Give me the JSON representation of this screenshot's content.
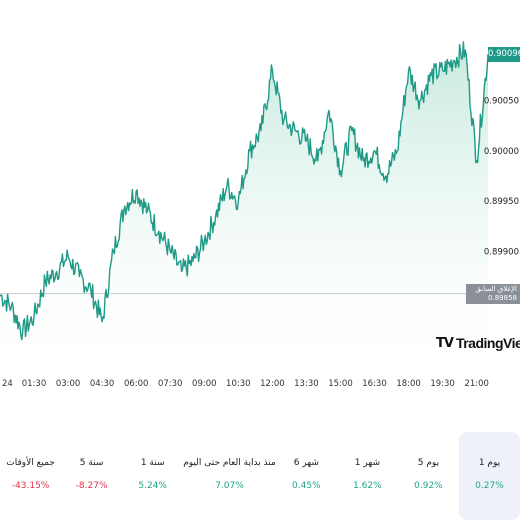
{
  "chart_data": {
    "type": "area",
    "x_ticks": [
      "24",
      "01:30",
      "03:00",
      "04:30",
      "06:00",
      "07:30",
      "09:00",
      "10:30",
      "12:00",
      "13:30",
      "15:00",
      "16:30",
      "18:00",
      "19:30",
      "21:00"
    ],
    "y_ticks": [
      "0.90050",
      "0.90000",
      "0.89950",
      "0.89900"
    ],
    "ylim": [
      0.8979,
      0.9013
    ],
    "series": [
      {
        "x": [
          "00:00",
          "00:30",
          "01:00",
          "01:30",
          "02:00",
          "02:30",
          "03:00",
          "03:30",
          "04:00",
          "04:30",
          "05:00",
          "05:30",
          "06:00",
          "06:30",
          "07:00",
          "07:30",
          "08:00",
          "08:30",
          "09:00",
          "09:30",
          "10:00",
          "10:30",
          "11:00",
          "11:30",
          "12:00",
          "12:30",
          "13:00",
          "13:30",
          "14:00",
          "14:30",
          "15:00",
          "15:30",
          "16:00",
          "16:30",
          "17:00",
          "17:30",
          "18:00",
          "18:30",
          "19:00",
          "19:30",
          "20:00",
          "20:30",
          "21:00",
          "21:30"
        ],
        "values": [
          0.89857,
          0.89845,
          0.8982,
          0.89835,
          0.8987,
          0.8988,
          0.89895,
          0.89875,
          0.89862,
          0.8983,
          0.899,
          0.89945,
          0.8996,
          0.8994,
          0.8992,
          0.899,
          0.8988,
          0.8989,
          0.8991,
          0.89935,
          0.89965,
          0.8995,
          0.9,
          0.9002,
          0.9008,
          0.9003,
          0.9002,
          0.9001,
          0.8999,
          0.9004,
          0.8998,
          0.9002,
          0.8999,
          0.9,
          0.89975,
          0.9,
          0.9008,
          0.9005,
          0.90075,
          0.9008,
          0.9009,
          0.901,
          0.8999,
          0.90096
        ]
      }
    ],
    "last_price": "0.90096",
    "prev_close_label": "الإغلاق السابق",
    "prev_close_value": "0.89858",
    "prev_close": 0.89858,
    "grid": false,
    "colors": {
      "line": "#1f9a87",
      "fill": "#d6efe7",
      "baseline": "#c9ccd3"
    }
  },
  "brand": {
    "name": "TradingView",
    "icon": "TV"
  },
  "periods": [
    {
      "label": "1 يوم",
      "value": "0.27%",
      "sign": "pos",
      "active": true
    },
    {
      "label": "5 يوم",
      "value": "0.92%",
      "sign": "pos",
      "active": false
    },
    {
      "label": "1 شهر",
      "value": "1.62%",
      "sign": "pos",
      "active": false
    },
    {
      "label": "6 شهر",
      "value": "0.45%",
      "sign": "pos",
      "active": false
    },
    {
      "label": "منذ بداية العام حتى اليوم",
      "value": "7.07%",
      "sign": "pos",
      "active": false
    },
    {
      "label": "1 سنة",
      "value": "5.24%",
      "sign": "pos",
      "active": false
    },
    {
      "label": "5 سنة",
      "value": "-8.27%",
      "sign": "neg",
      "active": false
    },
    {
      "label": "جميع الأوقات",
      "value": "-43.15%",
      "sign": "neg",
      "active": false
    }
  ]
}
